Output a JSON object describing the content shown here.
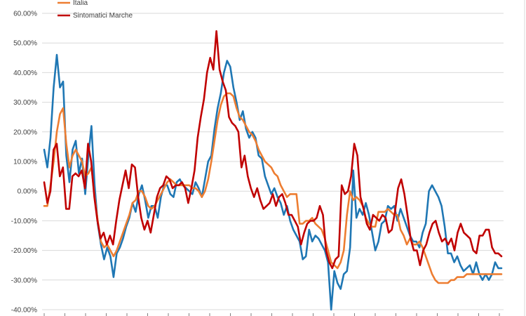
{
  "chart_data": {
    "type": "line",
    "ylim": [
      -0.4,
      0.6
    ],
    "y_ticks": [
      "60.00%",
      "50.00%",
      "40.00%",
      "30.00%",
      "20.00%",
      "10.00%",
      "0.00%",
      "-10.00%",
      "-20.00%",
      "-30.00%",
      "-40.00%"
    ],
    "y_tick_values": [
      0.6,
      0.5,
      0.4,
      0.3,
      0.2,
      0.1,
      0.0,
      -0.1,
      -0.2,
      -0.3,
      -0.4
    ],
    "grid": true,
    "legend_position": "top-left",
    "legend": [
      {
        "label": "Italia",
        "color": "#ED7D31"
      },
      {
        "label": "Sintomatici Marche",
        "color": "#C00000"
      }
    ],
    "series": [
      {
        "name": "",
        "color": "#1F77B4",
        "values": [
          0.14,
          0.08,
          0.18,
          0.35,
          0.46,
          0.35,
          0.37,
          0.12,
          0.03,
          0.14,
          0.17,
          0.06,
          0.11,
          -0.01,
          0.12,
          0.22,
          0.02,
          -0.11,
          -0.18,
          -0.23,
          -0.19,
          -0.22,
          -0.29,
          -0.21,
          -0.19,
          -0.16,
          -0.12,
          -0.09,
          -0.04,
          -0.07,
          -0.01,
          0.02,
          -0.03,
          -0.09,
          -0.05,
          -0.05,
          -0.09,
          -0.02,
          0.02,
          0.02,
          -0.01,
          -0.02,
          0.03,
          0.04,
          0.02,
          0.01,
          0.0,
          -0.01,
          0.03,
          0.01,
          -0.02,
          0.04,
          0.1,
          0.12,
          0.21,
          0.28,
          0.33,
          0.4,
          0.44,
          0.42,
          0.35,
          0.3,
          0.24,
          0.27,
          0.21,
          0.18,
          0.2,
          0.18,
          0.12,
          0.11,
          0.05,
          0.02,
          -0.01,
          0.01,
          -0.02,
          -0.04,
          -0.08,
          -0.05,
          -0.1,
          -0.13,
          -0.15,
          -0.17,
          -0.23,
          -0.22,
          -0.13,
          -0.17,
          -0.15,
          -0.16,
          -0.18,
          -0.2,
          -0.24,
          -0.4,
          -0.27,
          -0.31,
          -0.33,
          -0.28,
          -0.27,
          -0.19,
          0.07,
          -0.09,
          -0.06,
          -0.08,
          -0.04,
          -0.08,
          -0.14,
          -0.2,
          -0.17,
          -0.11,
          -0.1,
          -0.05,
          -0.06,
          -0.05,
          -0.1,
          -0.06,
          -0.09,
          -0.12,
          -0.15,
          -0.17,
          -0.17,
          -0.19,
          -0.14,
          -0.11,
          0.0,
          0.02,
          0.0,
          -0.02,
          -0.05,
          -0.12,
          -0.21,
          -0.21,
          -0.24,
          -0.22,
          -0.25,
          -0.27,
          -0.26,
          -0.25,
          -0.28,
          -0.24,
          -0.28,
          -0.3,
          -0.28,
          -0.3,
          -0.28,
          -0.24,
          -0.26,
          -0.26
        ]
      },
      {
        "name": "Italia",
        "color": "#ED7D31",
        "values": [
          -0.05,
          -0.05,
          0.02,
          0.1,
          0.2,
          0.26,
          0.28,
          0.16,
          0.08,
          0.12,
          0.14,
          0.12,
          0.1,
          0.05,
          0.06,
          0.08,
          -0.02,
          -0.1,
          -0.17,
          -0.19,
          -0.18,
          -0.2,
          -0.22,
          -0.2,
          -0.17,
          -0.14,
          -0.11,
          -0.08,
          -0.04,
          -0.03,
          0.0,
          0.0,
          -0.02,
          -0.05,
          -0.06,
          -0.05,
          -0.03,
          -0.01,
          0.01,
          0.03,
          0.04,
          0.03,
          0.02,
          0.02,
          0.02,
          0.02,
          0.02,
          0.01,
          0.01,
          0.0,
          -0.02,
          0.0,
          0.04,
          0.1,
          0.17,
          0.24,
          0.29,
          0.32,
          0.33,
          0.33,
          0.32,
          0.28,
          0.25,
          0.24,
          0.22,
          0.2,
          0.19,
          0.17,
          0.14,
          0.12,
          0.1,
          0.09,
          0.08,
          0.06,
          0.05,
          0.02,
          0.0,
          -0.02,
          -0.01,
          -0.01,
          -0.01,
          -0.11,
          -0.11,
          -0.1,
          -0.1,
          -0.09,
          -0.11,
          -0.12,
          -0.13,
          -0.16,
          -0.2,
          -0.24,
          -0.25,
          -0.26,
          -0.24,
          -0.2,
          -0.08,
          0.0,
          -0.03,
          -0.02,
          -0.03,
          -0.05,
          -0.09,
          -0.11,
          -0.12,
          -0.12,
          -0.07,
          -0.07,
          -0.07,
          -0.06,
          -0.07,
          -0.08,
          -0.08,
          -0.13,
          -0.15,
          -0.18,
          -0.16,
          -0.18,
          -0.18,
          -0.17,
          -0.19,
          -0.22,
          -0.25,
          -0.28,
          -0.3,
          -0.31,
          -0.31,
          -0.31,
          -0.31,
          -0.3,
          -0.3,
          -0.29,
          -0.29,
          -0.29,
          -0.28,
          -0.28,
          -0.28,
          -0.28,
          -0.28,
          -0.28,
          -0.28,
          -0.28,
          -0.28,
          -0.28,
          -0.28,
          -0.28
        ]
      },
      {
        "name": "Sintomatici Marche",
        "color": "#C00000",
        "values": [
          0.03,
          -0.04,
          0.0,
          0.14,
          0.16,
          0.05,
          0.08,
          -0.06,
          -0.06,
          0.05,
          0.06,
          0.05,
          0.07,
          0.01,
          0.16,
          0.1,
          -0.02,
          -0.1,
          -0.16,
          -0.14,
          -0.18,
          -0.15,
          -0.18,
          -0.1,
          -0.03,
          0.02,
          0.07,
          0.01,
          0.09,
          0.08,
          -0.02,
          -0.09,
          -0.13,
          -0.1,
          -0.14,
          -0.08,
          -0.02,
          0.01,
          0.02,
          0.05,
          0.04,
          0.01,
          0.02,
          0.02,
          0.03,
          0.01,
          -0.04,
          0.01,
          0.07,
          0.18,
          0.25,
          0.31,
          0.4,
          0.45,
          0.41,
          0.54,
          0.41,
          0.37,
          0.34,
          0.25,
          0.23,
          0.22,
          0.2,
          0.08,
          0.12,
          0.05,
          0.01,
          -0.02,
          0.01,
          -0.03,
          -0.06,
          -0.05,
          -0.04,
          -0.01,
          -0.05,
          -0.02,
          -0.01,
          -0.04,
          -0.08,
          -0.08,
          -0.1,
          -0.12,
          -0.18,
          -0.14,
          -0.11,
          -0.1,
          -0.1,
          -0.09,
          -0.05,
          -0.08,
          -0.2,
          -0.24,
          -0.26,
          -0.23,
          -0.22,
          0.02,
          -0.01,
          0.0,
          0.05,
          0.16,
          0.12,
          -0.02,
          -0.06,
          -0.11,
          -0.13,
          -0.08,
          -0.09,
          -0.1,
          -0.08,
          -0.09,
          -0.14,
          -0.13,
          -0.07,
          0.01,
          0.04,
          -0.01,
          -0.08,
          -0.16,
          -0.2,
          -0.2,
          -0.25,
          -0.2,
          -0.18,
          -0.14,
          -0.11,
          -0.1,
          -0.14,
          -0.17,
          -0.16,
          -0.18,
          -0.16,
          -0.2,
          -0.14,
          -0.11,
          -0.14,
          -0.15,
          -0.16,
          -0.2,
          -0.21,
          -0.15,
          -0.15,
          -0.13,
          -0.13,
          -0.19,
          -0.21,
          -0.21,
          -0.22
        ]
      }
    ]
  }
}
